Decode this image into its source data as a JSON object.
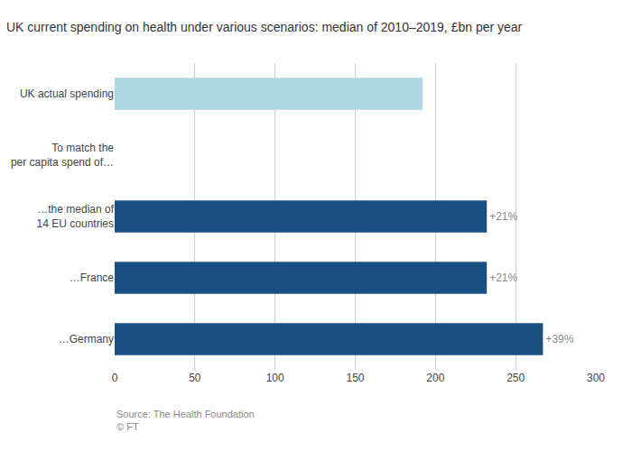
{
  "chart_data": {
    "type": "bar",
    "orientation": "horizontal",
    "title": "UK current spending on health under various scenarios: median of 2010–2019, £bn per year",
    "categories": [
      "UK actual spending",
      "To match the\nper capita spend of…",
      "…the median of\n14 EU countries",
      "…France",
      "…Germany"
    ],
    "values": [
      192,
      0,
      232,
      232,
      267
    ],
    "colors": [
      "#add8e6",
      null,
      "#1b4f82",
      "#1b4f82",
      "#1b4f82"
    ],
    "annotations": [
      null,
      null,
      "+21%",
      "+21%",
      "+39%"
    ],
    "xlim": [
      0,
      300
    ],
    "xticks": [
      0,
      50,
      100,
      150,
      200,
      250,
      300
    ],
    "grid": true,
    "source": "Source: The Health Foundation\n© FT"
  }
}
